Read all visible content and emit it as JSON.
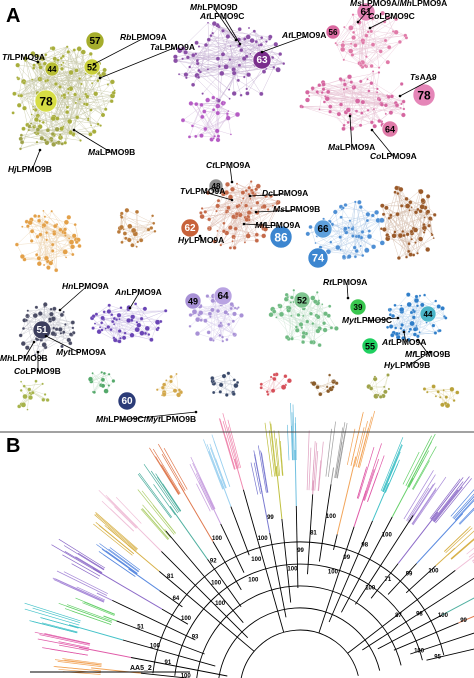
{
  "panels": {
    "a": "A",
    "b": "B"
  },
  "network_labels": [
    {
      "id": "rb",
      "sp": "Rb",
      "rest": "LPMO9A"
    },
    {
      "id": "ta",
      "sp": "Ta",
      "rest": "LPMO9A"
    },
    {
      "id": "tl",
      "sp": "Tl",
      "rest": "LPMO9A"
    },
    {
      "id": "ma1",
      "sp": "Ma",
      "rest": "LPMO9B"
    },
    {
      "id": "hj",
      "sp": "Hj",
      "rest": "LPMO9B"
    },
    {
      "id": "mh9d",
      "sp": "Mh",
      "rest": "LPMO9D"
    },
    {
      "id": "at9c",
      "sp": "At",
      "rest": "LPMO9C"
    },
    {
      "id": "at9a",
      "sp": "At",
      "rest": "LPMO9A"
    },
    {
      "id": "msmh",
      "sp": "Ms",
      "rest": "LPMO9A/",
      "sp2": "Mh",
      "rest2": "LPMO9A"
    },
    {
      "id": "co9c",
      "sp": "Co",
      "rest": "LPMO9C"
    },
    {
      "id": "tsaa9",
      "sp": "Ts",
      "rest": "AA9"
    },
    {
      "id": "ma9a",
      "sp": "Ma",
      "rest": "LPMO9A"
    },
    {
      "id": "co9a",
      "sp": "Co",
      "rest": "LPMO9A"
    },
    {
      "id": "ct9a",
      "sp": "Ct",
      "rest": "LPMO9A"
    },
    {
      "id": "tv9a",
      "sp": "Tv",
      "rest": "LPMO9A"
    },
    {
      "id": "dc9a",
      "sp": "Dc",
      "rest": "LPMO9A"
    },
    {
      "id": "ms9b",
      "sp": "Ms",
      "rest": "LPMO9B"
    },
    {
      "id": "mf9a",
      "sp": "Mf",
      "rest": "LPMO9A"
    },
    {
      "id": "hy9a",
      "sp": "Hy",
      "rest": "LPMO9A"
    },
    {
      "id": "hn9a",
      "sp": "Hn",
      "rest": "LPMO9A"
    },
    {
      "id": "an9a",
      "sp": "An",
      "rest": "LPMO9A"
    },
    {
      "id": "rt9a",
      "sp": "Rt",
      "rest": "LPMO9A"
    },
    {
      "id": "myt9c",
      "sp": "Myt",
      "rest": "LPMO9C"
    },
    {
      "id": "at9a2",
      "sp": "At",
      "rest": "LPMO9A"
    },
    {
      "id": "mf9b",
      "sp": "Mf",
      "rest": "LPMO9B"
    },
    {
      "id": "hy9b",
      "sp": "Hy",
      "rest": "LPMO9B"
    },
    {
      "id": "mh9b",
      "sp": "Mh",
      "rest": "LPMO9B"
    },
    {
      "id": "myt9a",
      "sp": "Myt",
      "rest": "LPMO9A"
    },
    {
      "id": "co9b",
      "sp": "Co",
      "rest": "LPMO9B"
    },
    {
      "id": "mhmyt",
      "sp": "Mh",
      "rest": "LPMO9C/",
      "sp2": "Myt",
      "rest2": "LPMO9B"
    }
  ],
  "cluster_numbers": [
    {
      "id": "n57",
      "text": "57",
      "fill": "#a5ad2c"
    },
    {
      "id": "n52",
      "text": "52",
      "fill": "#c9cf3a"
    },
    {
      "id": "n44a",
      "text": "44",
      "fill": "#b7bd33"
    },
    {
      "id": "n78a",
      "text": "78",
      "fill": "#d6dd44"
    },
    {
      "id": "n61",
      "text": "61",
      "fill": "#e586b8"
    },
    {
      "id": "n56",
      "text": "56",
      "fill": "#d9689f"
    },
    {
      "id": "n63",
      "text": "63",
      "fill": "#7a2e8c"
    },
    {
      "id": "n78b",
      "text": "78",
      "fill": "#e586b8"
    },
    {
      "id": "n64a",
      "text": "64",
      "fill": "#e07aa8"
    },
    {
      "id": "n48",
      "text": "48",
      "fill": "#8f8f8f"
    },
    {
      "id": "n62",
      "text": "62",
      "fill": "#c8623a"
    },
    {
      "id": "n86",
      "text": "86",
      "fill": "#3c86d0"
    },
    {
      "id": "n66",
      "text": "66",
      "fill": "#5ea0dc"
    },
    {
      "id": "n74",
      "text": "74",
      "fill": "#3c86d0"
    },
    {
      "id": "n49",
      "text": "49",
      "fill": "#a891d6"
    },
    {
      "id": "n64b",
      "text": "64",
      "fill": "#b9a3e2"
    },
    {
      "id": "n52b",
      "text": "52",
      "fill": "#7fc48f"
    },
    {
      "id": "n39",
      "text": "39",
      "fill": "#39c74f"
    },
    {
      "id": "n51",
      "text": "51",
      "fill": "#3d3f5e"
    },
    {
      "id": "n55",
      "text": "55",
      "fill": "#1fd060"
    },
    {
      "id": "n44b",
      "text": "44",
      "fill": "#4ab5c9"
    },
    {
      "id": "n60",
      "text": "60",
      "fill": "#2c3c78"
    }
  ],
  "bootstrap": [
    "100",
    "91",
    "100",
    "51",
    "93",
    "100",
    "64",
    "81",
    "100",
    "100",
    "92",
    "100",
    "100",
    "100",
    "100",
    "99",
    "100",
    "99",
    "81",
    "100",
    "100",
    "99",
    "98",
    "100",
    "100",
    "71",
    "99",
    "100",
    "87",
    "98",
    "100",
    "99",
    "100",
    "95"
  ],
  "outgroup_label": "AA5_2"
}
